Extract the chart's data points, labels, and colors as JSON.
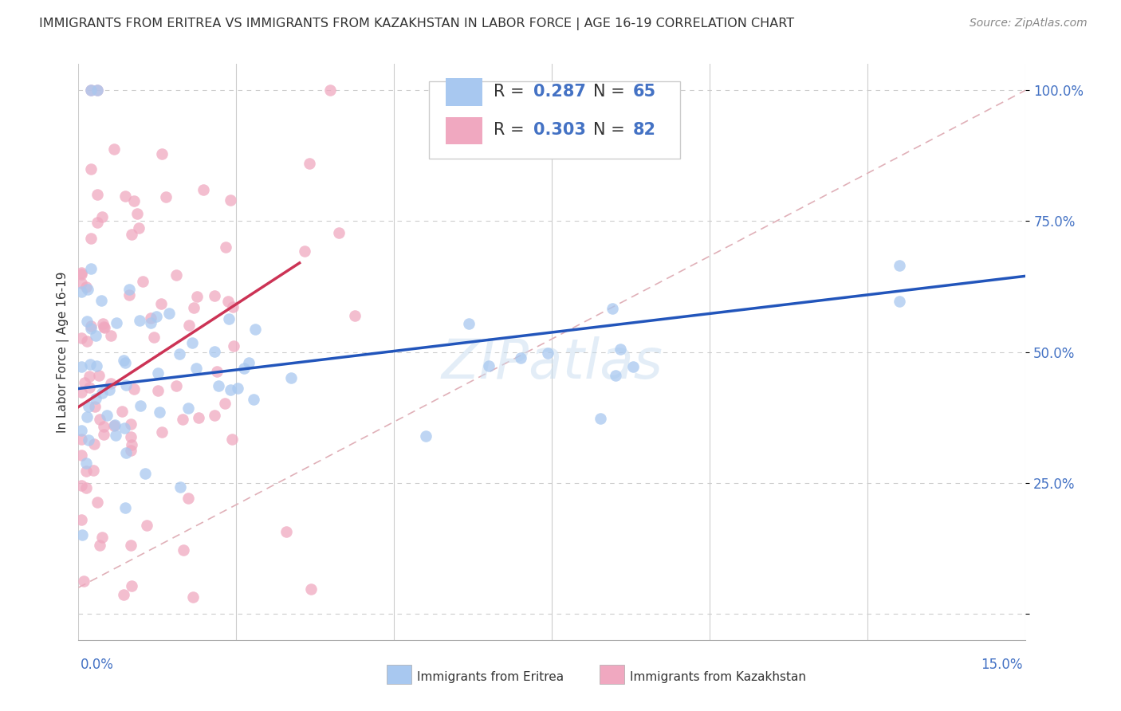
{
  "title": "IMMIGRANTS FROM ERITREA VS IMMIGRANTS FROM KAZAKHSTAN IN LABOR FORCE | AGE 16-19 CORRELATION CHART",
  "source": "Source: ZipAtlas.com",
  "ylabel": "In Labor Force | Age 16-19",
  "ytick_positions": [
    0.0,
    0.25,
    0.5,
    0.75,
    1.0
  ],
  "ytick_labels": [
    "",
    "25.0%",
    "50.0%",
    "75.0%",
    "100.0%"
  ],
  "xmin": 0.0,
  "xmax": 0.15,
  "ymin": -0.05,
  "ymax": 1.05,
  "eritrea_color": "#a8c8f0",
  "kazakhstan_color": "#f0a8c0",
  "eritrea_R": 0.287,
  "eritrea_N": 65,
  "kazakhstan_R": 0.303,
  "kazakhstan_N": 82,
  "eritrea_line_color": "#2255bb",
  "kazakhstan_line_color": "#cc3355",
  "diagonal_color": "#e0b0b8",
  "background_color": "#ffffff",
  "watermark": "ZIPatlas",
  "eritrea_line_x0": 0.0,
  "eritrea_line_y0": 0.43,
  "eritrea_line_x1": 0.15,
  "eritrea_line_y1": 0.645,
  "kazakhstan_line_x0": 0.0,
  "kazakhstan_line_y0": 0.395,
  "kazakhstan_line_x1": 0.035,
  "kazakhstan_line_y1": 0.67
}
